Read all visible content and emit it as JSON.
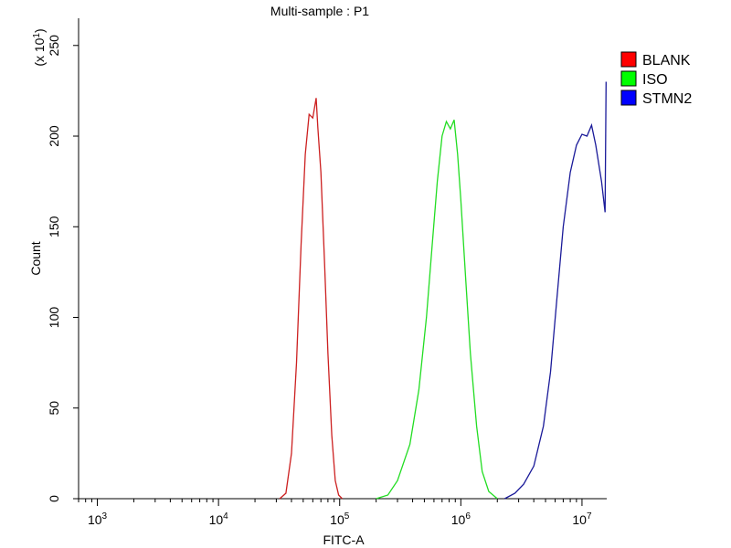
{
  "chart_data": {
    "type": "line",
    "title": "Multi-sample : P1",
    "xlabel": "FITC-A",
    "ylabel": "Count",
    "y_multiplier": "(x 10",
    "y_multiplier_exp": "1",
    "y_multiplier_close": ")",
    "x_scale": "log",
    "xlim": [
      700,
      16000000
    ],
    "ylim": [
      0,
      265
    ],
    "x_ticks": [
      {
        "value": 1000,
        "base": "10",
        "exp": "3"
      },
      {
        "value": 10000,
        "base": "10",
        "exp": "4"
      },
      {
        "value": 100000,
        "base": "10",
        "exp": "5"
      },
      {
        "value": 1000000,
        "base": "10",
        "exp": "6"
      },
      {
        "value": 10000000,
        "base": "10",
        "exp": "7"
      }
    ],
    "y_ticks": [
      {
        "value": 0,
        "label": "0"
      },
      {
        "value": 50,
        "label": "50"
      },
      {
        "value": 100,
        "label": "100"
      },
      {
        "value": 150,
        "label": "150"
      },
      {
        "value": 200,
        "label": "200"
      },
      {
        "value": 250,
        "label": "250"
      }
    ],
    "grid": false,
    "legend": "right",
    "series": [
      {
        "name": "BLANK",
        "color": "#cc2020",
        "legend_color": "#ff0000",
        "points": [
          [
            32000,
            0
          ],
          [
            36000,
            3
          ],
          [
            40000,
            25
          ],
          [
            44000,
            75
          ],
          [
            48000,
            140
          ],
          [
            52000,
            190
          ],
          [
            56000,
            212
          ],
          [
            60000,
            210
          ],
          [
            64000,
            221
          ],
          [
            66000,
            205
          ],
          [
            70000,
            180
          ],
          [
            75000,
            130
          ],
          [
            80000,
            80
          ],
          [
            86000,
            35
          ],
          [
            92000,
            10
          ],
          [
            98000,
            2
          ],
          [
            105000,
            0
          ]
        ]
      },
      {
        "name": "ISO",
        "color": "#22dd22",
        "legend_color": "#00ff00",
        "points": [
          [
            200000,
            0
          ],
          [
            250000,
            2
          ],
          [
            300000,
            10
          ],
          [
            380000,
            30
          ],
          [
            450000,
            60
          ],
          [
            520000,
            100
          ],
          [
            580000,
            140
          ],
          [
            640000,
            175
          ],
          [
            700000,
            200
          ],
          [
            760000,
            208
          ],
          [
            820000,
            204
          ],
          [
            880000,
            209
          ],
          [
            940000,
            190
          ],
          [
            1000000,
            165
          ],
          [
            1100000,
            120
          ],
          [
            1200000,
            80
          ],
          [
            1350000,
            40
          ],
          [
            1500000,
            15
          ],
          [
            1700000,
            4
          ],
          [
            2000000,
            0
          ]
        ]
      },
      {
        "name": "STMN2",
        "color": "#1a1a99",
        "legend_color": "#0000ff",
        "points": [
          [
            2300000,
            0
          ],
          [
            2800000,
            3
          ],
          [
            3300000,
            8
          ],
          [
            4000000,
            18
          ],
          [
            4800000,
            40
          ],
          [
            5500000,
            70
          ],
          [
            6200000,
            110
          ],
          [
            7000000,
            150
          ],
          [
            8000000,
            180
          ],
          [
            9000000,
            195
          ],
          [
            10000000,
            201
          ],
          [
            11000000,
            200
          ],
          [
            12000000,
            206
          ],
          [
            13000000,
            195
          ],
          [
            14500000,
            175
          ],
          [
            15500000,
            158
          ],
          [
            15800000,
            230
          ]
        ]
      }
    ]
  }
}
